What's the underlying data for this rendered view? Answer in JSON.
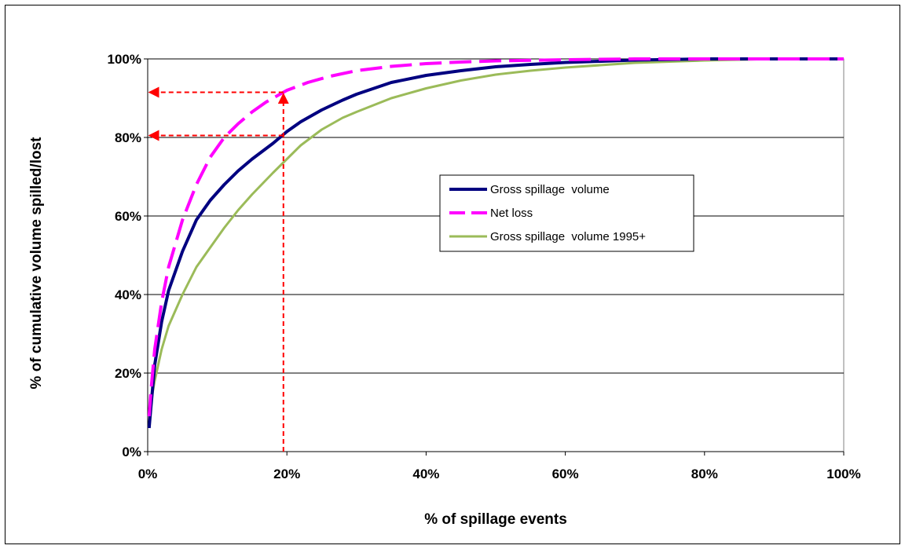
{
  "chart_data": {
    "type": "line",
    "xlabel": "% of spillage events",
    "ylabel": "% of cumulative volume spilled/lost",
    "xlim": [
      0,
      100
    ],
    "ylim": [
      0,
      100
    ],
    "x_ticks": [
      "0%",
      "20%",
      "40%",
      "60%",
      "80%",
      "100%"
    ],
    "y_ticks": [
      "0%",
      "20%",
      "40%",
      "60%",
      "80%",
      "100%"
    ],
    "grid": "horizontal",
    "legend_position": "center-right",
    "series": [
      {
        "name": "Gross spillage  volume",
        "color": "#000080",
        "style": "solid",
        "points": [
          [
            0.2,
            6
          ],
          [
            0.5,
            12
          ],
          [
            1,
            22
          ],
          [
            2,
            33
          ],
          [
            3,
            41
          ],
          [
            5,
            51
          ],
          [
            7,
            59
          ],
          [
            9,
            64
          ],
          [
            11,
            68
          ],
          [
            13,
            71.5
          ],
          [
            15,
            74.5
          ],
          [
            18,
            78.5
          ],
          [
            20,
            81.5
          ],
          [
            22,
            84
          ],
          [
            25,
            87
          ],
          [
            28,
            89.5
          ],
          [
            30,
            91
          ],
          [
            35,
            94
          ],
          [
            40,
            95.8
          ],
          [
            45,
            97
          ],
          [
            50,
            98
          ],
          [
            55,
            98.6
          ],
          [
            60,
            99.1
          ],
          [
            70,
            99.7
          ],
          [
            80,
            100
          ],
          [
            90,
            100
          ],
          [
            100,
            100
          ]
        ]
      },
      {
        "name": "Net loss",
        "color": "#ff00ff",
        "style": "dashed",
        "points": [
          [
            0.2,
            9
          ],
          [
            0.5,
            16
          ],
          [
            1,
            26
          ],
          [
            2,
            38
          ],
          [
            3,
            47
          ],
          [
            5,
            59
          ],
          [
            7,
            68
          ],
          [
            9,
            75
          ],
          [
            11,
            80
          ],
          [
            13,
            83.5
          ],
          [
            15,
            86.5
          ],
          [
            17,
            89
          ],
          [
            20,
            92
          ],
          [
            23,
            94
          ],
          [
            26,
            95.5
          ],
          [
            30,
            97
          ],
          [
            35,
            98.1
          ],
          [
            40,
            98.8
          ],
          [
            45,
            99.2
          ],
          [
            50,
            99.5
          ],
          [
            60,
            99.8
          ],
          [
            70,
            100
          ],
          [
            80,
            100
          ],
          [
            100,
            100
          ]
        ]
      },
      {
        "name": "Gross spillage  volume 1995+",
        "color": "#9bbb59",
        "style": "solid",
        "points": [
          [
            0.5,
            13
          ],
          [
            1,
            18
          ],
          [
            2,
            26
          ],
          [
            3,
            32
          ],
          [
            5,
            40
          ],
          [
            7,
            47
          ],
          [
            9,
            52
          ],
          [
            11,
            57
          ],
          [
            13,
            61.5
          ],
          [
            15,
            65.5
          ],
          [
            18,
            71
          ],
          [
            20,
            74.5
          ],
          [
            22,
            78
          ],
          [
            25,
            82
          ],
          [
            28,
            85
          ],
          [
            30,
            86.5
          ],
          [
            35,
            90
          ],
          [
            40,
            92.5
          ],
          [
            45,
            94.5
          ],
          [
            50,
            96
          ],
          [
            55,
            97
          ],
          [
            60,
            97.8
          ],
          [
            70,
            99
          ],
          [
            80,
            99.6
          ],
          [
            90,
            100
          ],
          [
            100,
            100
          ]
        ]
      }
    ],
    "annotations": {
      "color": "#ff0000",
      "guide_x": 19.5,
      "guide_y_net_loss": 91.5,
      "guide_y_gross": 80.5
    }
  }
}
